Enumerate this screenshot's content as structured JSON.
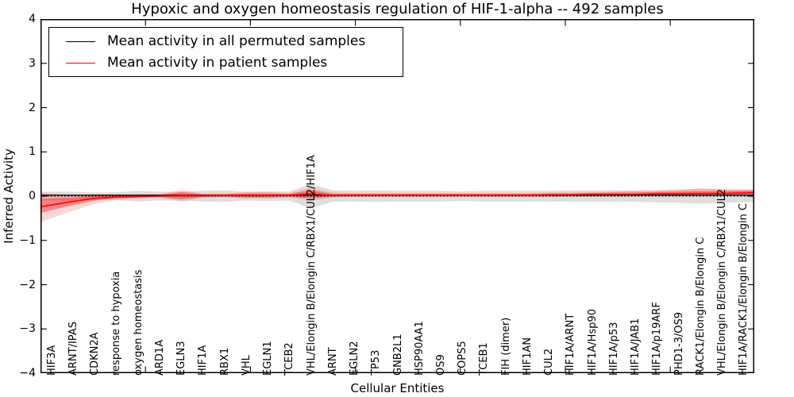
{
  "chart_data": {
    "type": "line",
    "title": "Hypoxic and oxygen homeostasis regulation of HIF-1-alpha -- 492 samples",
    "xlabel": "Cellular Entities",
    "ylabel": "Inferred Activity",
    "ylim": [
      -4,
      4
    ],
    "ytick_values": [
      4,
      3,
      2,
      1,
      0,
      -1,
      -2,
      -3,
      -4
    ],
    "ytick_labels": [
      "4",
      "3",
      "2",
      "1",
      "0",
      "−1",
      "−2",
      "−3",
      "−4"
    ],
    "grid": false,
    "legend": {
      "position": "upper left",
      "entries": [
        {
          "label": "Mean activity in all permuted samples",
          "color": "#000000"
        },
        {
          "label": "Mean activity in patient samples",
          "color": "#ff0000"
        }
      ]
    },
    "categories": [
      "HIF3A",
      "ARNT/IPAS",
      "CDKN2A",
      "response to hypoxia",
      "oxygen homeostasis",
      "ARD1A",
      "EGLN3",
      "HIF1A",
      "RBX1",
      "VHL",
      "EGLN1",
      "TCEB2",
      "VHL/Elongin B/Elongin C/RBX1/CUL2/HIF1A",
      "ARNT",
      "EGLN2",
      "TP53",
      "GNB2L1",
      "HSP90AA1",
      "OS9",
      "COPS5",
      "TCEB1",
      "FIH (dimer)",
      "HIF1AN",
      "CUL2",
      "HIF1A/ARNT",
      "HIF1A/Hsp90",
      "HIF1A/p53",
      "HIF1A/JAB1",
      "HIF1A/p19ARF",
      "PHD1-3/OS9",
      "RACK1/Elongin B/Elongin C",
      "VHL/Elongin B/Elongin C/RBX1/CUL2",
      "HIF1A/RACK1/Elongin B/Elongin C"
    ],
    "series": [
      {
        "name": "Mean activity in all permuted samples",
        "color": "#000000",
        "line_style": "solid",
        "values": [
          0.02,
          0.02,
          0.02,
          0.02,
          0.02,
          0.02,
          0.02,
          0.02,
          0.02,
          0.02,
          0.02,
          0.02,
          0.02,
          0.02,
          0.02,
          0.02,
          0.02,
          0.02,
          0.02,
          0.02,
          0.02,
          0.02,
          0.02,
          0.02,
          0.02,
          0.02,
          0.02,
          0.02,
          0.02,
          0.02,
          0.02,
          0.02,
          0.02
        ]
      },
      {
        "name": "Mean activity in patient samples",
        "color": "#ff0000",
        "line_style": "solid",
        "values": [
          -0.2,
          -0.12,
          -0.05,
          -0.02,
          -0.01,
          0.0,
          0.01,
          0.01,
          0.02,
          0.02,
          0.02,
          0.02,
          0.05,
          0.02,
          0.02,
          0.02,
          0.02,
          0.02,
          0.02,
          0.02,
          0.02,
          0.02,
          0.02,
          0.03,
          0.03,
          0.04,
          0.04,
          0.04,
          0.05,
          0.05,
          0.06,
          0.06,
          0.07
        ]
      }
    ],
    "zero_reference_line": {
      "value": 0,
      "color": "#000000",
      "line_style": "dotted"
    },
    "bands": [
      {
        "name": "permuted samples activity spread",
        "color": "#d8d8d8",
        "opacity": 0.85,
        "lo": [
          -0.1,
          -0.1,
          -0.08,
          -0.09,
          -0.12,
          -0.1,
          -0.1,
          -0.12,
          -0.13,
          -0.1,
          -0.11,
          -0.1,
          -0.28,
          -0.13,
          -0.12,
          -0.13,
          -0.12,
          -0.12,
          -0.12,
          -0.11,
          -0.12,
          -0.12,
          -0.12,
          -0.12,
          -0.13,
          -0.13,
          -0.13,
          -0.13,
          -0.14,
          -0.15,
          -0.17,
          -0.15,
          -0.14
        ],
        "hi": [
          0.1,
          0.1,
          0.08,
          0.09,
          0.12,
          0.1,
          0.1,
          0.12,
          0.13,
          0.1,
          0.11,
          0.1,
          0.28,
          0.13,
          0.12,
          0.13,
          0.12,
          0.12,
          0.12,
          0.11,
          0.12,
          0.12,
          0.12,
          0.12,
          0.13,
          0.13,
          0.13,
          0.13,
          0.14,
          0.15,
          0.17,
          0.15,
          0.14
        ]
      },
      {
        "name": "patient samples activity spread (outer)",
        "color": "#ff0000",
        "opacity": 0.17,
        "lo": [
          -0.5,
          -0.33,
          -0.18,
          -0.09,
          -0.05,
          -0.04,
          -0.12,
          -0.04,
          -0.03,
          -0.05,
          -0.05,
          -0.03,
          -0.1,
          -0.03,
          -0.02,
          -0.02,
          -0.02,
          -0.02,
          -0.02,
          -0.02,
          -0.02,
          -0.02,
          -0.02,
          -0.02,
          -0.01,
          -0.01,
          -0.01,
          0.0,
          0.0,
          0.0,
          0.0,
          0.0,
          0.0
        ],
        "hi": [
          0.06,
          0.03,
          0.04,
          0.04,
          0.04,
          0.05,
          0.13,
          0.06,
          0.06,
          0.09,
          0.09,
          0.07,
          0.18,
          0.08,
          0.07,
          0.07,
          0.07,
          0.07,
          0.07,
          0.07,
          0.07,
          0.07,
          0.07,
          0.08,
          0.08,
          0.09,
          0.1,
          0.11,
          0.12,
          0.14,
          0.17,
          0.16,
          0.15
        ]
      },
      {
        "name": "patient samples activity spread (inner)",
        "color": "#ff0000",
        "opacity": 0.38,
        "lo": [
          -0.32,
          -0.2,
          -0.1,
          -0.05,
          -0.03,
          -0.02,
          -0.07,
          -0.02,
          -0.01,
          -0.03,
          -0.03,
          -0.01,
          -0.05,
          -0.01,
          0.0,
          0.0,
          0.0,
          0.0,
          0.0,
          0.0,
          0.0,
          0.0,
          0.0,
          0.0,
          0.0,
          0.0,
          0.01,
          0.01,
          0.01,
          0.01,
          0.01,
          0.01,
          0.02
        ],
        "hi": [
          -0.05,
          -0.03,
          0.01,
          0.01,
          0.02,
          0.02,
          0.09,
          0.04,
          0.04,
          0.06,
          0.06,
          0.05,
          0.13,
          0.05,
          0.05,
          0.05,
          0.05,
          0.05,
          0.05,
          0.05,
          0.05,
          0.05,
          0.05,
          0.06,
          0.06,
          0.07,
          0.08,
          0.08,
          0.09,
          0.1,
          0.11,
          0.11,
          0.12
        ]
      }
    ]
  }
}
